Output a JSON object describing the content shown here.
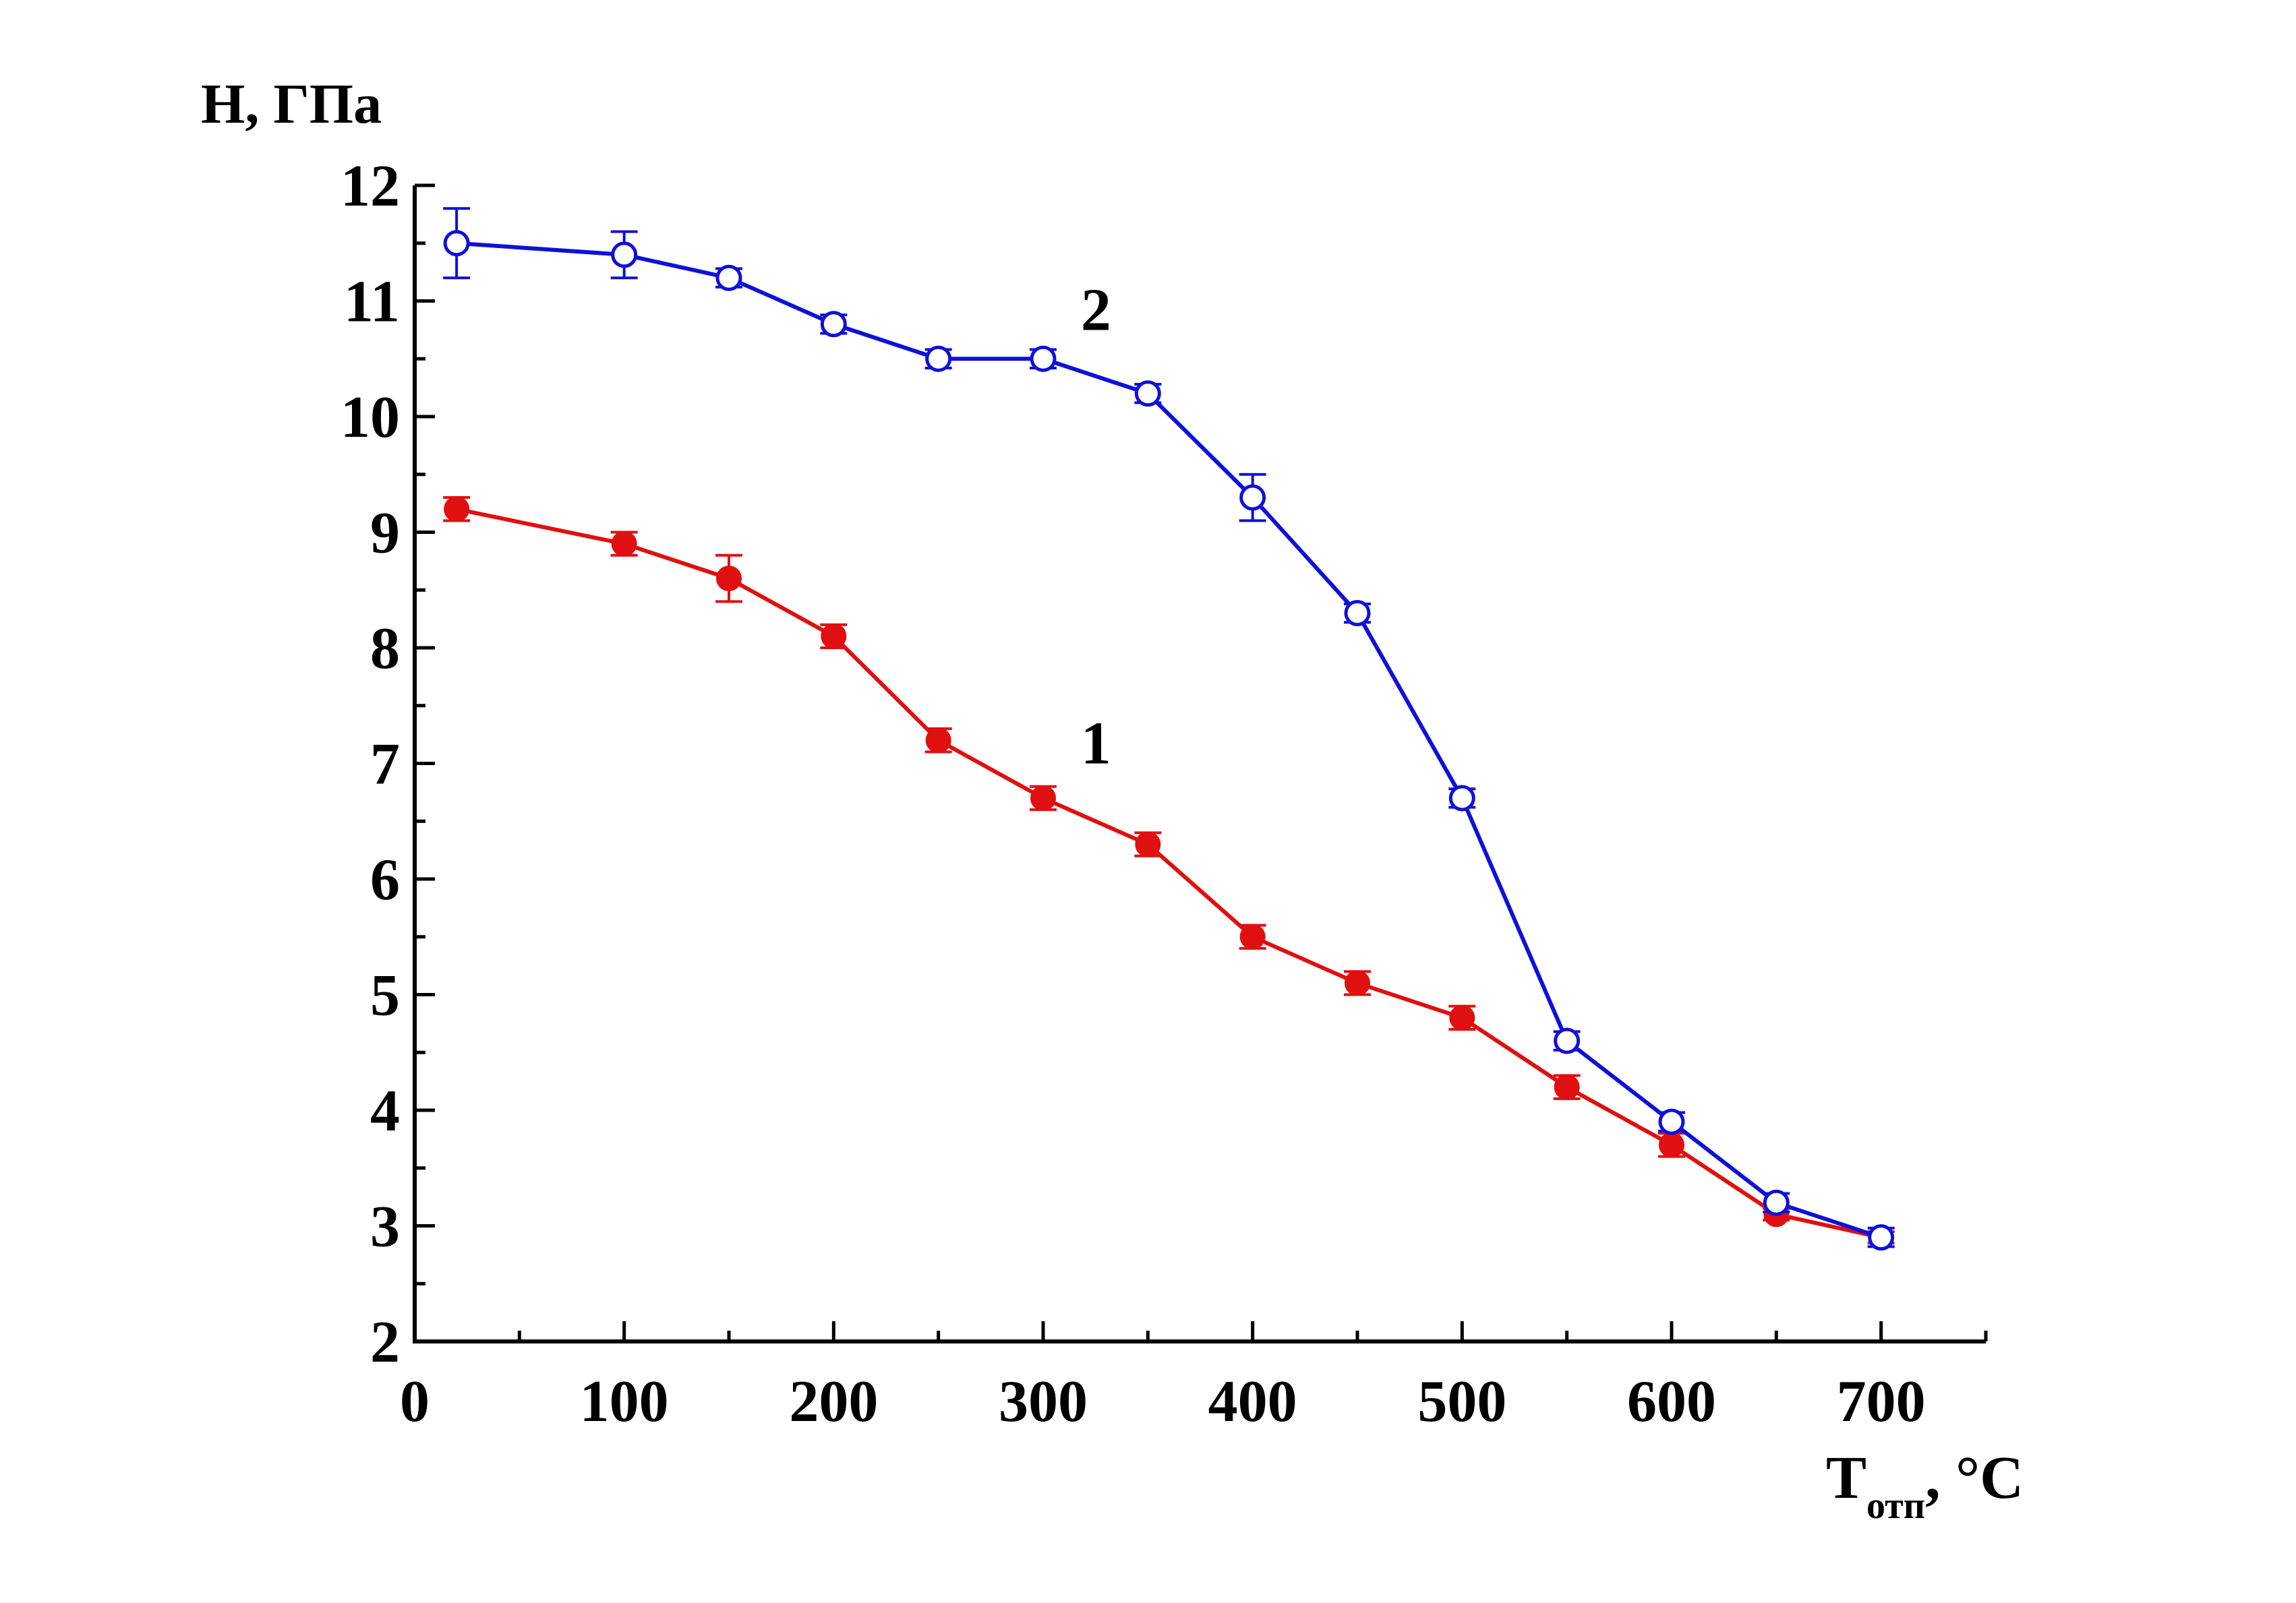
{
  "chart_data": {
    "type": "line",
    "ylabel": "H, ГПа",
    "xlabel_main": "T",
    "xlabel_sub": "отп",
    "xlabel_unit": ", °C",
    "xlim": [
      0,
      750
    ],
    "ylim": [
      2,
      12
    ],
    "x_ticks": [
      0,
      100,
      200,
      300,
      400,
      500,
      600,
      700
    ],
    "x_tick_labels": [
      "0",
      "100",
      "200",
      "300",
      "400",
      "500",
      "600",
      "700"
    ],
    "x_minor_ticks": [
      50,
      150,
      250,
      350,
      450,
      550,
      650
    ],
    "y_ticks": [
      2,
      3,
      4,
      5,
      6,
      7,
      8,
      9,
      10,
      11,
      12
    ],
    "y_tick_labels": [
      "2",
      "3",
      "4",
      "5",
      "6",
      "7",
      "8",
      "9",
      "10",
      "11",
      "12"
    ],
    "y_minor_ticks": [
      2.5,
      3.5,
      4.5,
      5.5,
      6.5,
      7.5,
      8.5,
      9.5,
      10.5,
      11.5
    ],
    "grid": false,
    "series": [
      {
        "name": "1",
        "color": "#e01010",
        "marker": "filled-circle",
        "x": [
          20,
          100,
          150,
          200,
          250,
          300,
          350,
          400,
          450,
          500,
          550,
          600,
          650,
          700
        ],
        "y": [
          9.2,
          8.9,
          8.6,
          8.1,
          7.2,
          6.7,
          6.3,
          5.5,
          5.1,
          4.8,
          4.2,
          3.7,
          3.1,
          2.9
        ],
        "err": [
          0.1,
          0.1,
          0.2,
          0.1,
          0.1,
          0.1,
          0.1,
          0.1,
          0.1,
          0.1,
          0.1,
          0.1,
          0.05,
          0.05
        ]
      },
      {
        "name": "2",
        "color": "#1010d8",
        "marker": "open-circle",
        "x": [
          20,
          100,
          150,
          200,
          250,
          300,
          350,
          400,
          450,
          500,
          550,
          600,
          650,
          700
        ],
        "y": [
          11.5,
          11.4,
          11.2,
          10.8,
          10.5,
          10.5,
          10.2,
          9.3,
          8.3,
          6.7,
          4.6,
          3.9,
          3.2,
          2.9
        ],
        "err": [
          0.3,
          0.2,
          0.08,
          0.08,
          0.08,
          0.08,
          0.08,
          0.2,
          0.08,
          0.08,
          0.08,
          0.08,
          0.08,
          0.08
        ]
      }
    ],
    "annotations": [
      {
        "text": "1",
        "x": 318,
        "y": 7.0
      },
      {
        "text": "2",
        "x": 318,
        "y": 10.75
      }
    ]
  }
}
